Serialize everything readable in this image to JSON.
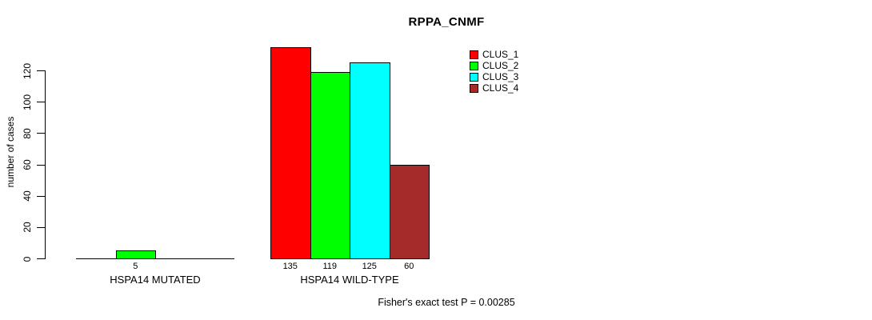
{
  "chart_data": {
    "type": "bar",
    "title": "RPPA_CNMF",
    "ylabel": "number of cases",
    "xlabel": "",
    "ylim": [
      0,
      135
    ],
    "yticks": [
      0,
      20,
      40,
      60,
      80,
      100,
      120
    ],
    "grid": false,
    "legend_position": "top-right",
    "categories": [
      "HSPA14 MUTATED",
      "HSPA14 WILD-TYPE"
    ],
    "series": [
      {
        "name": "CLUS_1",
        "color": "#FF0000",
        "values": [
          0,
          135
        ]
      },
      {
        "name": "CLUS_2",
        "color": "#00FF00",
        "values": [
          5,
          119
        ]
      },
      {
        "name": "CLUS_3",
        "color": "#00FFFF",
        "values": [
          0,
          125
        ]
      },
      {
        "name": "CLUS_4",
        "color": "#A52A2A",
        "values": [
          0,
          60
        ]
      }
    ],
    "bar_value_labels": [
      [
        "",
        "5",
        "",
        ""
      ],
      [
        "135",
        "119",
        "125",
        "60"
      ]
    ],
    "footnote": "Fisher's exact test P = 0.00285"
  }
}
